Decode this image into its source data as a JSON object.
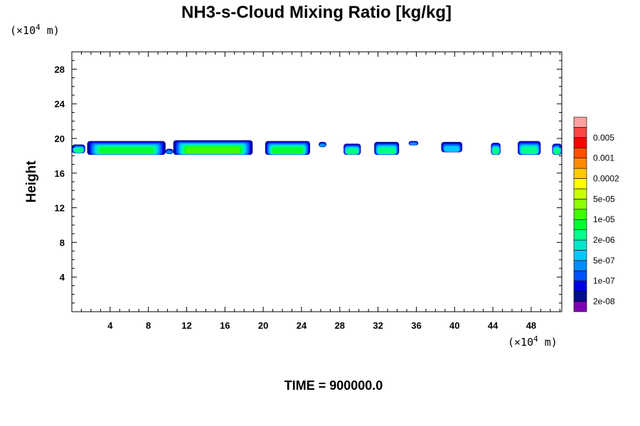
{
  "chart_data": {
    "type": "heatmap",
    "title": "NH3-s-Cloud Mixing Ratio [kg/kg]",
    "ylabel": "Height",
    "x_unit": {
      "prefix": "(×10",
      "exp": "4",
      "suffix": " m)"
    },
    "y_unit": {
      "prefix": "(×10",
      "exp": "4",
      "suffix": " m)"
    },
    "xlim": [
      0,
      51.2
    ],
    "ylim": [
      0,
      30
    ],
    "x_ticks": [
      4,
      8,
      12,
      16,
      20,
      24,
      28,
      32,
      36,
      40,
      44,
      48
    ],
    "y_ticks": [
      4,
      8,
      12,
      16,
      20,
      24,
      28
    ],
    "colorbar": {
      "levels": [
        "2e-08",
        "1e-07",
        "5e-07",
        "2e-06",
        "1e-05",
        "5e-05",
        "0.0002",
        "0.001",
        "0.005"
      ],
      "colors": [
        "#7f00b2",
        "#000e8a",
        "#0000e6",
        "#0050ff",
        "#008cff",
        "#00c8ff",
        "#00e6c8",
        "#00ff8c",
        "#00ff32",
        "#3cff00",
        "#8cff00",
        "#c8ff00",
        "#ffff00",
        "#ffc800",
        "#ff8c00",
        "#ff5000",
        "#ff0000",
        "#ff4646",
        "#ffa0a0"
      ]
    },
    "cloud_segments": [
      {
        "x0": 0.0,
        "x1": 1.4,
        "ybot": 18.3,
        "ytop": 19.3,
        "max_level": 7
      },
      {
        "x0": 1.6,
        "x1": 9.8,
        "ybot": 18.1,
        "ytop": 19.7,
        "max_level": 8
      },
      {
        "x0": 9.8,
        "x1": 10.6,
        "ybot": 18.2,
        "ytop": 18.8,
        "max_level": 4
      },
      {
        "x0": 10.6,
        "x1": 18.9,
        "ybot": 18.1,
        "ytop": 19.8,
        "max_level": 9
      },
      {
        "x0": 20.2,
        "x1": 24.9,
        "ybot": 18.1,
        "ytop": 19.7,
        "max_level": 8
      },
      {
        "x0": 25.8,
        "x1": 26.6,
        "ybot": 19.0,
        "ytop": 19.6,
        "max_level": 4
      },
      {
        "x0": 28.4,
        "x1": 30.2,
        "ybot": 18.1,
        "ytop": 19.4,
        "max_level": 7
      },
      {
        "x0": 31.6,
        "x1": 34.2,
        "ybot": 18.1,
        "ytop": 19.6,
        "max_level": 7
      },
      {
        "x0": 35.2,
        "x1": 36.2,
        "ybot": 19.2,
        "ytop": 19.7,
        "max_level": 4
      },
      {
        "x0": 38.6,
        "x1": 40.8,
        "ybot": 18.4,
        "ytop": 19.6,
        "max_level": 5
      },
      {
        "x0": 43.8,
        "x1": 44.8,
        "ybot": 18.1,
        "ytop": 19.5,
        "max_level": 7
      },
      {
        "x0": 46.6,
        "x1": 49.0,
        "ybot": 18.1,
        "ytop": 19.7,
        "max_level": 7
      },
      {
        "x0": 50.2,
        "x1": 51.2,
        "ybot": 18.1,
        "ytop": 19.4,
        "max_level": 7
      }
    ],
    "time_label": "TIME = 900000.0"
  }
}
